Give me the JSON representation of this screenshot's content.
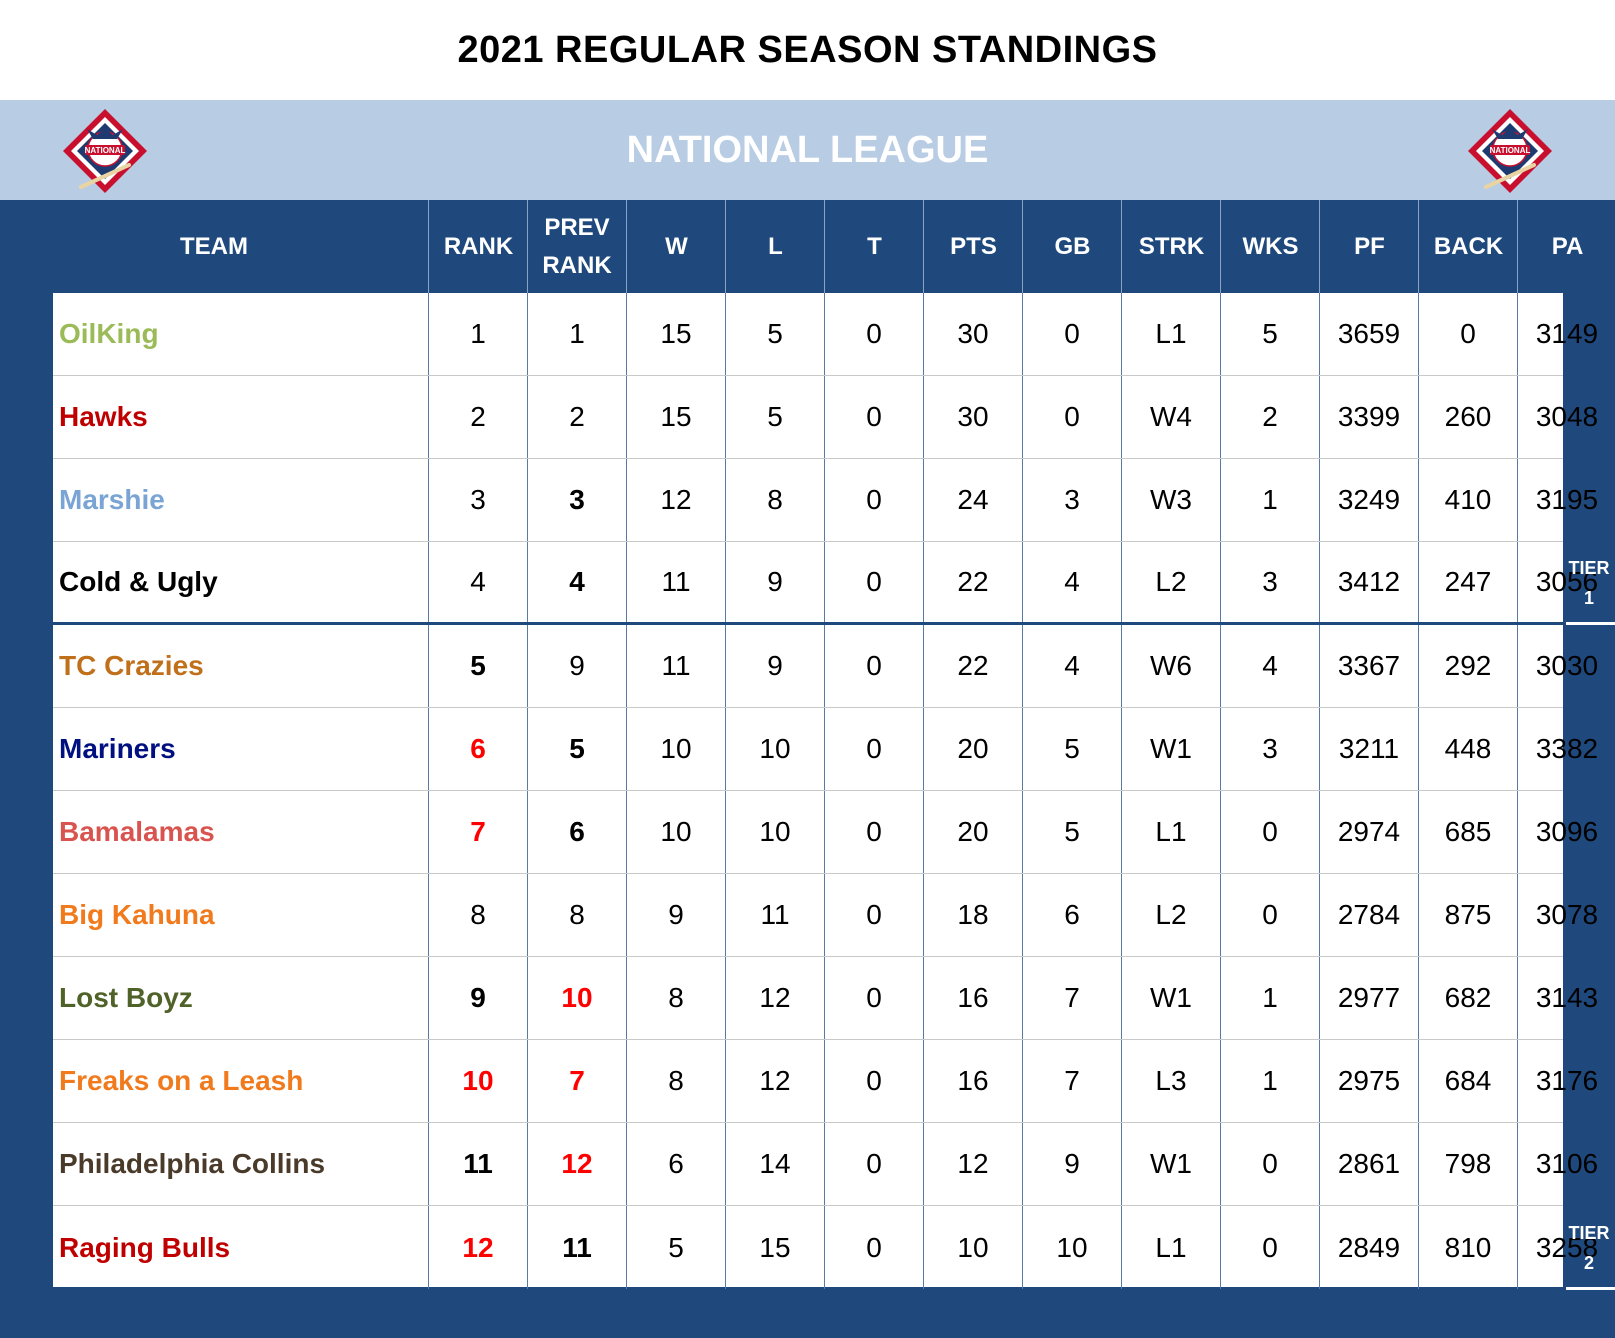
{
  "title": "2021 REGULAR SEASON STANDINGS",
  "league": {
    "name": "NATIONAL LEAGUE",
    "logo_icon": "national-league-logo-icon",
    "logo_text": "NATIONAL"
  },
  "colors": {
    "league_band": "#b8cce4",
    "main_band": "#1f497d",
    "emphasis_red": "#ff0000"
  },
  "columns": [
    {
      "key": "team",
      "label": "TEAM"
    },
    {
      "key": "rank",
      "label": "RANK"
    },
    {
      "key": "prev_rank",
      "label": "PREV RANK"
    },
    {
      "key": "w",
      "label": "W"
    },
    {
      "key": "l",
      "label": "L"
    },
    {
      "key": "t",
      "label": "T"
    },
    {
      "key": "pts",
      "label": "PTS"
    },
    {
      "key": "gb",
      "label": "GB"
    },
    {
      "key": "strk",
      "label": "STRK"
    },
    {
      "key": "wks",
      "label": "WKS"
    },
    {
      "key": "pf",
      "label": "PF"
    },
    {
      "key": "back",
      "label": "BACK"
    },
    {
      "key": "pa",
      "label": "PA"
    }
  ],
  "tiers": [
    {
      "label_1": "TIER",
      "label_2": "1"
    },
    {
      "label_1": "TIER",
      "label_2": "2"
    }
  ],
  "rows": [
    {
      "team": "OilKing",
      "team_color": "#9bbb59",
      "rank": "1",
      "rank_style": "normal",
      "prev_rank": "1",
      "prev_rank_style": "normal",
      "w": "15",
      "l": "5",
      "t": "0",
      "pts": "30",
      "gb": "0",
      "strk": "L1",
      "wks": "5",
      "pf": "3659",
      "back": "0",
      "pa": "3149"
    },
    {
      "team": "Hawks",
      "team_color": "#c00000",
      "rank": "2",
      "rank_style": "normal",
      "prev_rank": "2",
      "prev_rank_style": "normal",
      "w": "15",
      "l": "5",
      "t": "0",
      "pts": "30",
      "gb": "0",
      "strk": "W4",
      "wks": "2",
      "pf": "3399",
      "back": "260",
      "pa": "3048"
    },
    {
      "team": "Marshie",
      "team_color": "#7aa4d3",
      "rank": "3",
      "rank_style": "normal",
      "prev_rank": "3",
      "prev_rank_style": "bold",
      "w": "12",
      "l": "8",
      "t": "0",
      "pts": "24",
      "gb": "3",
      "strk": "W3",
      "wks": "1",
      "pf": "3249",
      "back": "410",
      "pa": "3195"
    },
    {
      "team": "Cold & Ugly",
      "team_color": "#000000",
      "rank": "4",
      "rank_style": "normal",
      "prev_rank": "4",
      "prev_rank_style": "bold",
      "w": "11",
      "l": "9",
      "t": "0",
      "pts": "22",
      "gb": "4",
      "strk": "L2",
      "wks": "3",
      "pf": "3412",
      "back": "247",
      "pa": "3056"
    },
    {
      "team": "TC Crazies",
      "team_color": "#c0701b",
      "rank": "5",
      "rank_style": "bold",
      "prev_rank": "9",
      "prev_rank_style": "normal",
      "w": "11",
      "l": "9",
      "t": "0",
      "pts": "22",
      "gb": "4",
      "strk": "W6",
      "wks": "4",
      "pf": "3367",
      "back": "292",
      "pa": "3030"
    },
    {
      "team": "Mariners",
      "team_color": "#001080",
      "rank": "6",
      "rank_style": "red",
      "prev_rank": "5",
      "prev_rank_style": "bold",
      "w": "10",
      "l": "10",
      "t": "0",
      "pts": "20",
      "gb": "5",
      "strk": "W1",
      "wks": "3",
      "pf": "3211",
      "back": "448",
      "pa": "3382"
    },
    {
      "team": "Bamalamas",
      "team_color": "#d9534f",
      "rank": "7",
      "rank_style": "red",
      "prev_rank": "6",
      "prev_rank_style": "bold",
      "w": "10",
      "l": "10",
      "t": "0",
      "pts": "20",
      "gb": "5",
      "strk": "L1",
      "wks": "0",
      "pf": "2974",
      "back": "685",
      "pa": "3096"
    },
    {
      "team": "Big Kahuna",
      "team_color": "#f07a1c",
      "rank": "8",
      "rank_style": "normal",
      "prev_rank": "8",
      "prev_rank_style": "normal",
      "w": "9",
      "l": "11",
      "t": "0",
      "pts": "18",
      "gb": "6",
      "strk": "L2",
      "wks": "0",
      "pf": "2784",
      "back": "875",
      "pa": "3078"
    },
    {
      "team": "Lost Boyz",
      "team_color": "#4f6228",
      "rank": "9",
      "rank_style": "bold",
      "prev_rank": "10",
      "prev_rank_style": "red",
      "w": "8",
      "l": "12",
      "t": "0",
      "pts": "16",
      "gb": "7",
      "strk": "W1",
      "wks": "1",
      "pf": "2977",
      "back": "682",
      "pa": "3143"
    },
    {
      "team": "Freaks on a Leash",
      "team_color": "#f07a1c",
      "rank": "10",
      "rank_style": "red",
      "prev_rank": "7",
      "prev_rank_style": "red",
      "w": "8",
      "l": "12",
      "t": "0",
      "pts": "16",
      "gb": "7",
      "strk": "L3",
      "wks": "1",
      "pf": "2975",
      "back": "684",
      "pa": "3176"
    },
    {
      "team": "Philadelphia Collins",
      "team_color": "#4a3a2a",
      "rank": "11",
      "rank_style": "bold",
      "prev_rank": "12",
      "prev_rank_style": "red",
      "w": "6",
      "l": "14",
      "t": "0",
      "pts": "12",
      "gb": "9",
      "strk": "W1",
      "wks": "0",
      "pf": "2861",
      "back": "798",
      "pa": "3106"
    },
    {
      "team": "Raging Bulls",
      "team_color": "#c00000",
      "rank": "12",
      "rank_style": "red",
      "prev_rank": "11",
      "prev_rank_style": "bold",
      "w": "5",
      "l": "15",
      "t": "0",
      "pts": "10",
      "gb": "10",
      "strk": "L1",
      "wks": "0",
      "pf": "2849",
      "back": "810",
      "pa": "3258"
    }
  ]
}
